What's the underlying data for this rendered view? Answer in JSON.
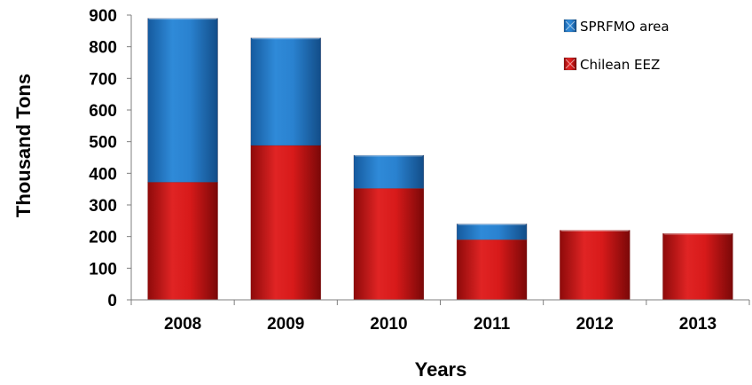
{
  "chart_data": {
    "type": "bar",
    "stacked": true,
    "categories": [
      "2008",
      "2009",
      "2010",
      "2011",
      "2012",
      "2013"
    ],
    "series": [
      {
        "name": "Chilean EEZ",
        "color": "#cc1111",
        "values": [
          372,
          488,
          352,
          190,
          220,
          210
        ]
      },
      {
        "name": "SPRFMO area",
        "color": "#1f77c8",
        "values": [
          518,
          340,
          105,
          50,
          0,
          0
        ]
      }
    ],
    "xlabel": "Years",
    "ylabel": "Thousand Tons",
    "ylim": [
      0,
      900
    ],
    "yticks": [
      0,
      100,
      200,
      300,
      400,
      500,
      600,
      700,
      800,
      900
    ],
    "grid": false,
    "legend": {
      "position": "top-right",
      "order": [
        "SPRFMO area",
        "Chilean EEZ"
      ]
    }
  }
}
